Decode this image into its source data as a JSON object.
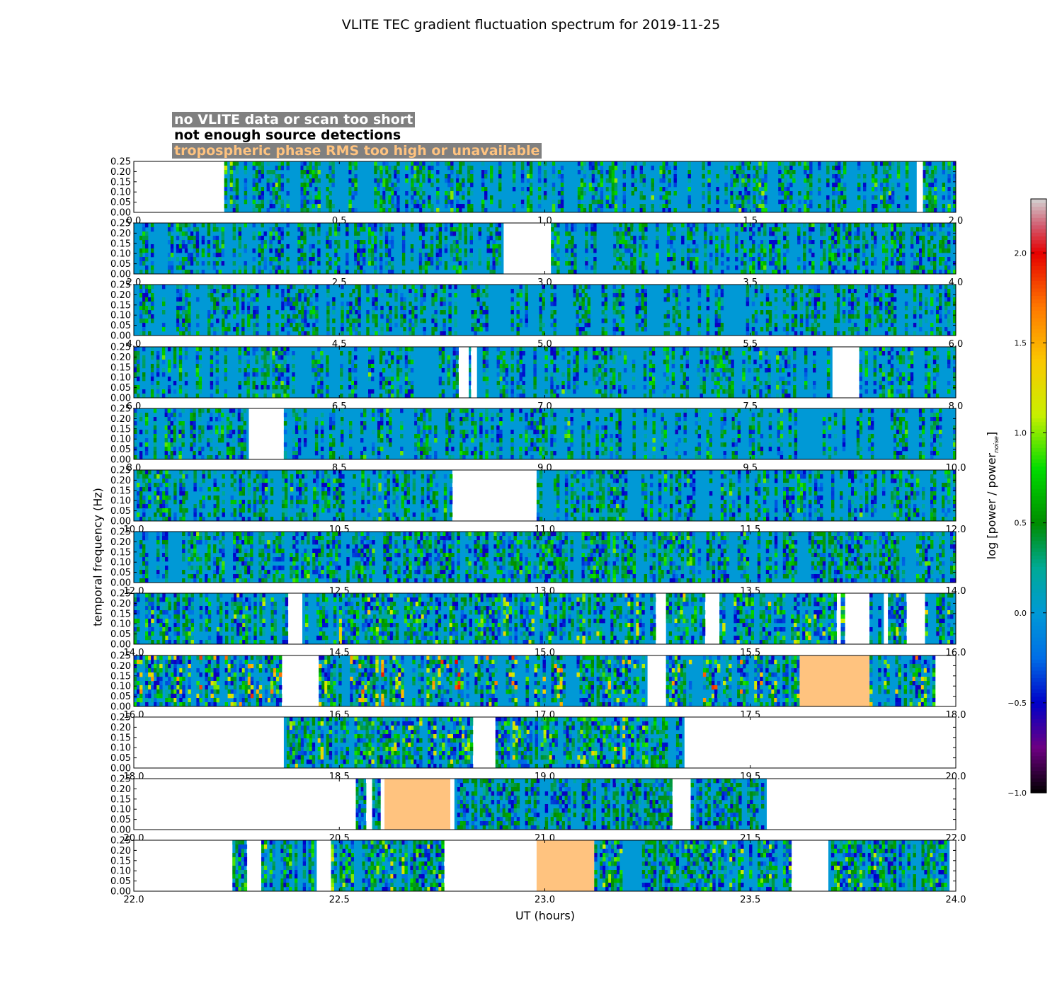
{
  "title": "VLITE TEC gradient fluctuation spectrum for 2019-11-25",
  "legend": {
    "no_data": "no VLITE data or scan too short",
    "few_detections": "not enough source detections",
    "tropo": "tropospheric phase RMS too high or unavailable"
  },
  "colors": {
    "no_data": "#ffffff",
    "few_detections": "#ffffff",
    "tropo": "#ffc37f",
    "baseline": "#0099d6"
  },
  "axes": {
    "ylabel": "temporal frequency (Hz)",
    "xlabel": "UT (hours)",
    "y_ticks": [
      "0.00",
      "0.05",
      "0.10",
      "0.15",
      "0.20",
      "0.25"
    ],
    "ylim": [
      0,
      0.25
    ],
    "hours_per_row": 2
  },
  "colorbar": {
    "label_main": "log [power / power",
    "label_sub": "noise",
    "label_end": "]",
    "range": [
      -1.0,
      2.3
    ],
    "ticks": [
      "−1.0",
      "−0.5",
      "0.0",
      "0.5",
      "1.0",
      "1.5",
      "2.0"
    ]
  },
  "chart_data": {
    "type": "heatmap",
    "title": "VLITE TEC gradient fluctuation spectrum for 2019-11-25",
    "xlabel": "UT (hours)",
    "ylabel": "temporal frequency (Hz)",
    "colorbar_label": "log [power / power_noise]",
    "ylim": [
      0,
      0.25
    ],
    "rows": [
      {
        "xlim": [
          0,
          2
        ],
        "x_ticks": [
          "0.0",
          "0.5",
          "1.0",
          "1.5",
          "2.0"
        ],
        "no_data": [
          [
            0.0,
            0.22
          ],
          [
            1.905,
            1.92
          ]
        ],
        "tropo": [],
        "active": [
          [
            0.22,
            1.905
          ],
          [
            1.92,
            2.0
          ]
        ],
        "activity": 0.35,
        "peak": 0.9
      },
      {
        "xlim": [
          2,
          4
        ],
        "x_ticks": [
          "2.0",
          "2.5",
          "3.0",
          "3.5",
          "4.0"
        ],
        "no_data": [
          [
            2.9,
            3.015
          ]
        ],
        "tropo": [],
        "active": [
          [
            2.0,
            2.9
          ],
          [
            3.015,
            4.0
          ]
        ],
        "activity": 0.4,
        "peak": 0.7
      },
      {
        "xlim": [
          4,
          6
        ],
        "x_ticks": [
          "4.0",
          "4.5",
          "5.0",
          "5.5",
          "6.0"
        ],
        "no_data": [],
        "tropo": [],
        "active": [
          [
            4.0,
            6.0
          ]
        ],
        "activity": 0.35,
        "peak": 0.6
      },
      {
        "xlim": [
          6,
          8
        ],
        "x_ticks": [
          "6.0",
          "6.5",
          "7.0",
          "7.5",
          "8.0"
        ],
        "no_data": [
          [
            6.79,
            6.815
          ],
          [
            6.82,
            6.835
          ],
          [
            7.7,
            7.765
          ]
        ],
        "tropo": [],
        "active": [
          [
            6.0,
            6.79
          ],
          [
            6.815,
            6.82
          ],
          [
            6.835,
            7.7
          ],
          [
            7.765,
            8.0
          ]
        ],
        "activity": 0.3,
        "peak": 0.8
      },
      {
        "xlim": [
          8,
          10
        ],
        "x_ticks": [
          "8.0",
          "8.5",
          "9.0",
          "9.5",
          "10.0"
        ],
        "no_data": [
          [
            8.28,
            8.365
          ]
        ],
        "tropo": [],
        "active": [
          [
            8.0,
            8.28
          ],
          [
            8.365,
            10.0
          ]
        ],
        "activity": 0.3,
        "peak": 0.8
      },
      {
        "xlim": [
          10,
          12
        ],
        "x_ticks": [
          "10.0",
          "10.5",
          "11.0",
          "11.5",
          "12.0"
        ],
        "no_data": [
          [
            10.775,
            10.98
          ]
        ],
        "tropo": [],
        "active": [
          [
            10.0,
            10.775
          ],
          [
            10.98,
            12.0
          ]
        ],
        "activity": 0.35,
        "peak": 0.8
      },
      {
        "xlim": [
          12,
          14
        ],
        "x_ticks": [
          "12.0",
          "12.5",
          "13.0",
          "13.5",
          "14.0"
        ],
        "no_data": [],
        "tropo": [],
        "active": [
          [
            12.0,
            14.0
          ]
        ],
        "activity": 0.5,
        "peak": 0.8
      },
      {
        "xlim": [
          14,
          16
        ],
        "x_ticks": [
          "14.0",
          "14.5",
          "15.0",
          "15.5",
          "16.0"
        ],
        "no_data": [
          [
            14.375,
            14.41
          ],
          [
            15.27,
            15.295
          ],
          [
            15.39,
            15.425
          ],
          [
            15.71,
            15.72
          ],
          [
            15.73,
            15.79
          ],
          [
            15.825,
            15.835
          ],
          [
            15.88,
            15.925
          ]
        ],
        "tropo": [],
        "active": [
          [
            14.0,
            14.375
          ],
          [
            14.41,
            15.27
          ],
          [
            15.295,
            15.39
          ],
          [
            15.425,
            15.71
          ],
          [
            15.72,
            15.73
          ],
          [
            15.79,
            15.825
          ],
          [
            15.835,
            15.88
          ],
          [
            15.925,
            16.0
          ]
        ],
        "activity": 0.5,
        "peak": 1.2
      },
      {
        "xlim": [
          16,
          18
        ],
        "x_ticks": [
          "16.0",
          "16.5",
          "17.0",
          "17.5",
          "18.0"
        ],
        "no_data": [
          [
            16.36,
            16.45
          ],
          [
            17.25,
            17.295
          ],
          [
            17.95,
            18.0
          ]
        ],
        "tropo": [
          [
            17.62,
            17.79
          ]
        ],
        "active": [
          [
            16.0,
            16.36
          ],
          [
            16.45,
            17.25
          ],
          [
            17.295,
            17.62
          ],
          [
            17.79,
            17.95
          ]
        ],
        "activity": 0.5,
        "peak": 1.9
      },
      {
        "xlim": [
          18,
          20
        ],
        "x_ticks": [
          "18.0",
          "18.5",
          "19.0",
          "19.5",
          "20.0"
        ],
        "no_data": [
          [
            18.0,
            18.365
          ],
          [
            18.825,
            18.88
          ],
          [
            19.34,
            20.0
          ]
        ],
        "tropo": [],
        "active": [
          [
            18.365,
            18.825
          ],
          [
            18.88,
            19.34
          ]
        ],
        "activity": 0.55,
        "peak": 1.3
      },
      {
        "xlim": [
          20,
          22
        ],
        "x_ticks": [
          "20.0",
          "20.5",
          "21.0",
          "21.5",
          "22.0"
        ],
        "no_data": [
          [
            20.0,
            20.54
          ],
          [
            20.565,
            20.58
          ],
          [
            20.6,
            20.61
          ],
          [
            20.77,
            20.78
          ],
          [
            21.31,
            21.355
          ],
          [
            21.54,
            22.0
          ]
        ],
        "tropo": [
          [
            20.61,
            20.77
          ]
        ],
        "active": [
          [
            20.54,
            20.565
          ],
          [
            20.58,
            20.6
          ],
          [
            20.78,
            21.31
          ],
          [
            21.355,
            21.54
          ]
        ],
        "activity": 0.55,
        "peak": 0.4
      },
      {
        "xlim": [
          22,
          24
        ],
        "x_ticks": [
          "22.0",
          "22.5",
          "23.0",
          "23.5",
          "24.0"
        ],
        "no_data": [
          [
            22.0,
            22.24
          ],
          [
            22.275,
            22.31
          ],
          [
            22.445,
            22.48
          ],
          [
            22.755,
            22.98
          ],
          [
            23.6,
            23.69
          ],
          [
            23.985,
            24.0
          ]
        ],
        "tropo": [
          [
            22.98,
            23.12
          ]
        ],
        "active": [
          [
            22.24,
            22.275
          ],
          [
            22.31,
            22.445
          ],
          [
            22.48,
            22.755
          ],
          [
            23.12,
            23.6
          ],
          [
            23.69,
            23.985
          ]
        ],
        "activity": 0.55,
        "peak": 1.1
      }
    ]
  }
}
